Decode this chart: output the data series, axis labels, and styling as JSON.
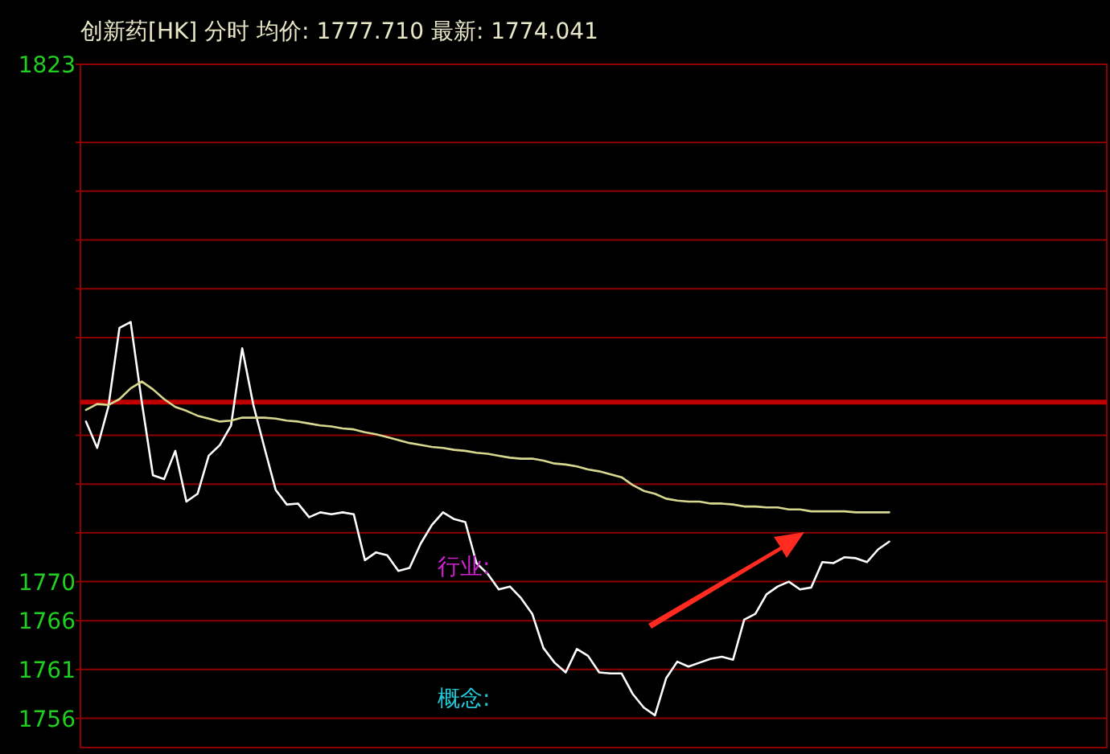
{
  "chart_data": {
    "type": "line",
    "title": "创新药[HK] 分时 均价: 1777.710 最新: 1774.041",
    "categories": [
      null,
      null,
      null,
      null,
      null,
      null,
      null,
      null,
      null,
      null,
      null,
      null,
      null,
      null,
      null,
      null,
      null,
      null,
      null,
      null,
      null,
      null,
      null,
      null,
      null,
      null,
      null,
      null,
      null,
      null,
      null,
      null,
      null,
      null,
      null,
      null,
      null,
      null,
      null,
      null,
      null,
      null,
      null,
      null,
      null,
      null,
      null,
      null,
      null,
      null,
      null,
      null,
      null,
      null,
      null,
      null,
      null,
      null,
      null,
      null,
      null,
      null,
      null,
      null,
      null,
      null,
      null,
      null,
      null,
      null,
      null,
      null,
      null,
      null,
      null,
      null,
      null,
      null,
      null,
      null,
      null,
      null,
      null,
      null,
      null,
      null,
      null,
      null,
      null,
      null,
      null,
      null
    ],
    "series": [
      {
        "color": "#ffffff",
        "values": [
          1786.4,
          1783.7,
          1787.9,
          1796.0,
          1796.6,
          1788.4,
          1780.9,
          1780.5,
          1783.4,
          1778.2,
          1779.0,
          1782.9,
          1784.0,
          1786.0,
          1793.9,
          1788.1,
          1783.7,
          1779.4,
          1777.9,
          1778.0,
          1776.6,
          1777.1,
          1776.9,
          1777.1,
          1776.9,
          1772.2,
          1773.0,
          1772.7,
          1771.1,
          1771.4,
          1773.9,
          1775.8,
          1777.1,
          1776.4,
          1776.1,
          1771.9,
          1770.8,
          1769.2,
          1769.5,
          1768.3,
          1766.7,
          1763.2,
          1761.7,
          1760.7,
          1763.1,
          1762.4,
          1760.7,
          1760.6,
          1760.6,
          1758.5,
          1757.1,
          1756.3,
          1760.1,
          1761.8,
          1761.3,
          1761.7,
          1762.1,
          1762.3,
          1762.0,
          1766.1,
          1766.7,
          1768.7,
          1769.5,
          1770.0,
          1769.2,
          1769.4,
          1772.0,
          1771.9,
          1772.5,
          1772.4,
          1772.0,
          1773.3,
          1774.1,
          null,
          null,
          null,
          null,
          null,
          null,
          null,
          null,
          null,
          null,
          null,
          null,
          null,
          null,
          null,
          null,
          null,
          null,
          null
        ]
      },
      {
        "color": "#d8d890",
        "values": [
          1787.6,
          1788.2,
          1788.1,
          1788.7,
          1789.8,
          1790.5,
          1789.7,
          1788.7,
          1787.9,
          1787.5,
          1787.0,
          1786.7,
          1786.4,
          1786.5,
          1786.8,
          1786.8,
          1786.8,
          1786.7,
          1786.5,
          1786.4,
          1786.2,
          1786.0,
          1785.9,
          1785.7,
          1785.6,
          1785.3,
          1785.1,
          1784.8,
          1784.5,
          1784.2,
          1784.0,
          1783.8,
          1783.7,
          1783.5,
          1783.4,
          1783.2,
          1783.1,
          1782.9,
          1782.7,
          1782.6,
          1782.6,
          1782.4,
          1782.1,
          1782.0,
          1781.8,
          1781.5,
          1781.3,
          1781.0,
          1780.7,
          1779.9,
          1779.3,
          1779.0,
          1778.5,
          1778.3,
          1778.2,
          1778.2,
          1778.0,
          1778.0,
          1777.9,
          1777.7,
          1777.7,
          1777.6,
          1777.6,
          1777.4,
          1777.4,
          1777.2,
          1777.2,
          1777.2,
          1777.2,
          1777.1,
          1777.1,
          1777.1,
          1777.1,
          null,
          null,
          null,
          null,
          null,
          null,
          null,
          null,
          null,
          null,
          null,
          null,
          null,
          null,
          null,
          null,
          null,
          null,
          null
        ]
      }
    ],
    "ylim": [
      1753,
      1823
    ],
    "yticks": [
      1756,
      1761,
      1766,
      1770,
      {
        "value": 1775,
        "label": null
      },
      {
        "value": 1780,
        "label": null
      },
      {
        "value": 1785,
        "label": null
      },
      {
        "value": 1795,
        "label": null
      },
      {
        "value": 1800,
        "label": null
      },
      {
        "value": 1805,
        "label": null
      },
      {
        "value": 1810,
        "label": null
      },
      {
        "value": 1815,
        "label": null
      },
      1823
    ],
    "grid": "y",
    "ref_lines": [
      {
        "axis": "y",
        "value": 1788.4,
        "color": "#c00000"
      }
    ],
    "annotations": [
      "行业:",
      "概念:"
    ]
  }
}
